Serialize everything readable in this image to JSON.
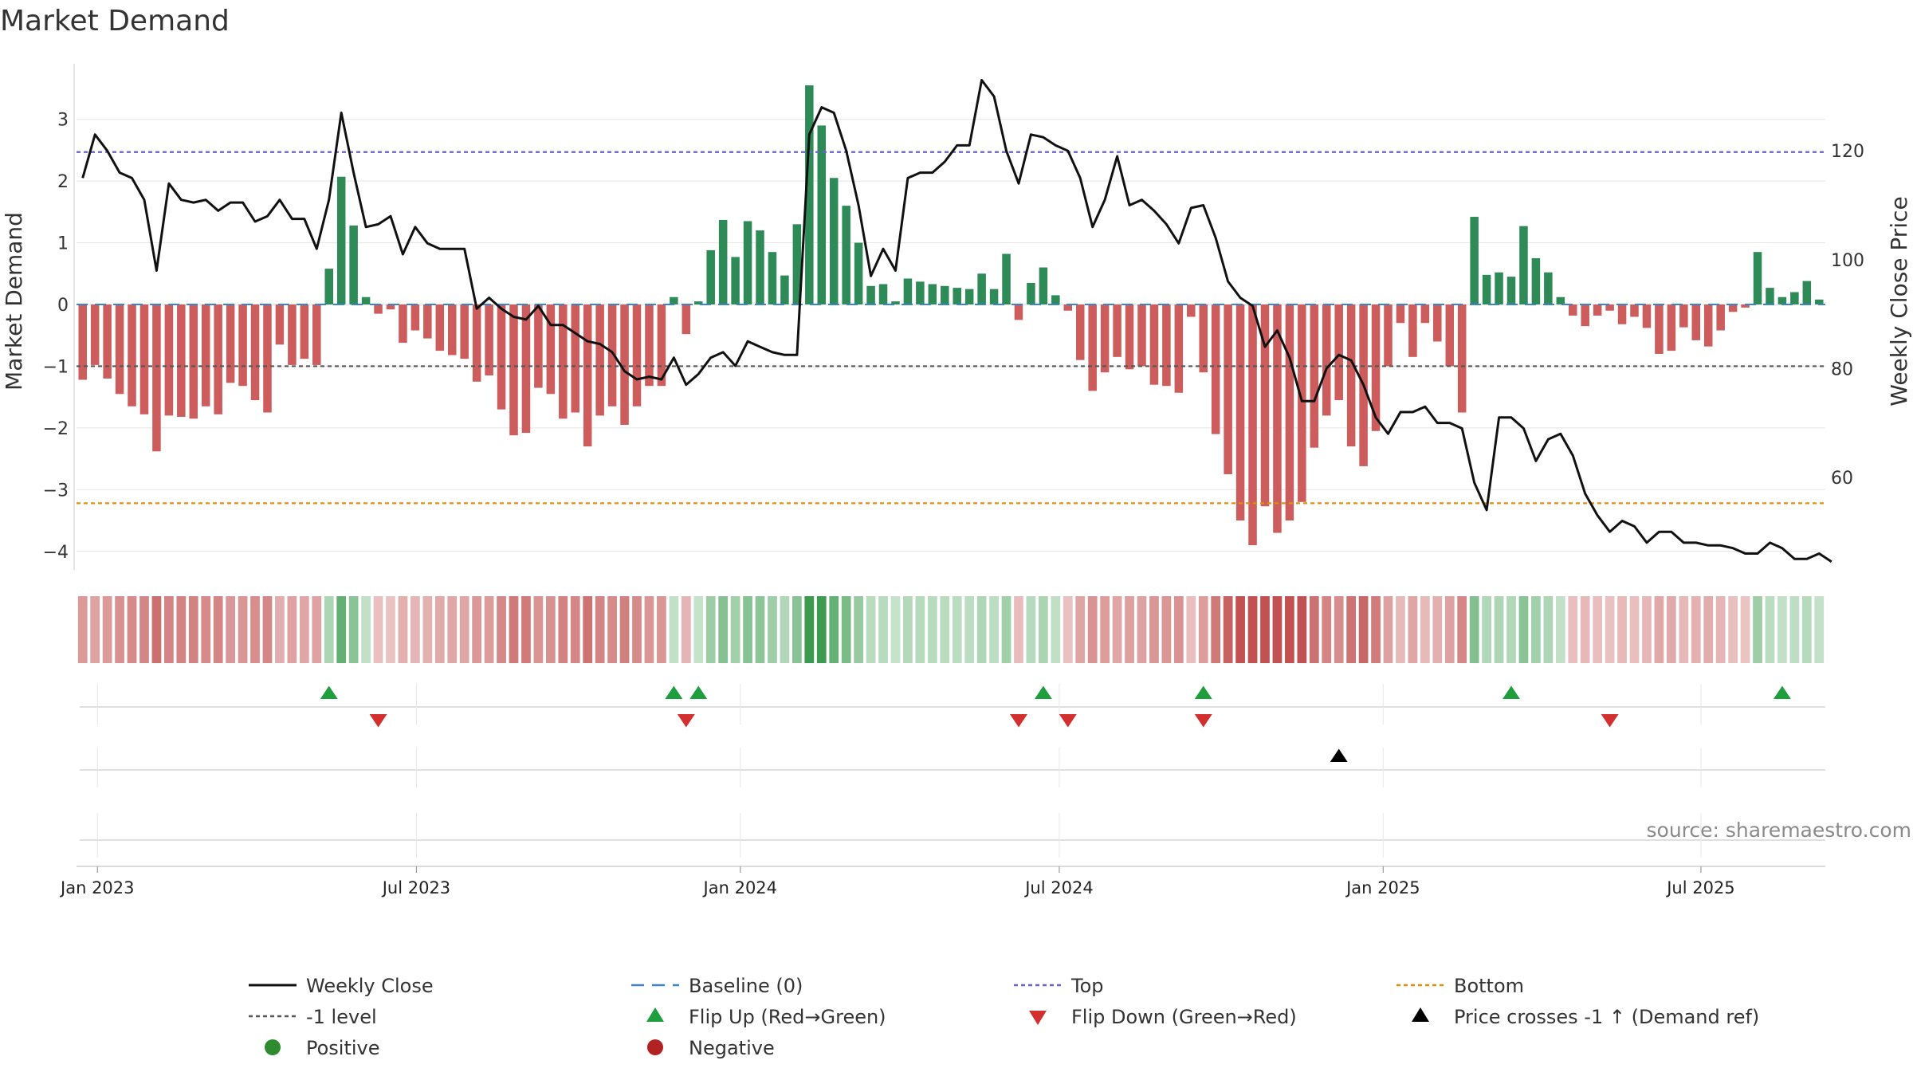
{
  "chart_data": {
    "type": "bar",
    "title": "Market Demand",
    "ylabel": "Market Demand",
    "ylabel_right": "Weekly Close Price",
    "ylim": [
      -4.3,
      3.9
    ],
    "ylim_right": [
      43,
      136
    ],
    "yticks": [
      3,
      2,
      1,
      0,
      -1,
      -2,
      -3,
      -4
    ],
    "ytick_labels": [
      "3",
      "2",
      "1",
      "0",
      "−1",
      "−2",
      "−3",
      "−4"
    ],
    "yticks_right": [
      120,
      100,
      80,
      60
    ],
    "ytick_labels_right": [
      "120",
      "100",
      "80",
      "60"
    ],
    "x_start": "2022-12-25",
    "x_step_days": 7,
    "date_ticks": [
      {
        "week": 1.2,
        "label": "Jan 2023"
      },
      {
        "week": 27.1,
        "label": "Jul 2023"
      },
      {
        "week": 53.4,
        "label": "Jan 2024"
      },
      {
        "week": 79.3,
        "label": "Jul 2024"
      },
      {
        "week": 105.6,
        "label": "Jan 2025"
      },
      {
        "week": 131.4,
        "label": "Jul 2025"
      }
    ],
    "reference_lines": {
      "baseline": 0,
      "top": 2.47,
      "bottom": -3.22,
      "minus_one": -1
    },
    "series": [
      {
        "name": "Market Demand",
        "values": [
          -1.22,
          -0.98,
          -1.2,
          -1.45,
          -1.65,
          -1.78,
          -2.38,
          -1.8,
          -1.82,
          -1.85,
          -1.65,
          -1.78,
          -1.27,
          -1.32,
          -1.55,
          -1.75,
          -0.65,
          -0.98,
          -0.88,
          -0.98,
          0.58,
          2.07,
          1.28,
          0.12,
          -0.15,
          -0.08,
          -0.62,
          -0.42,
          -0.55,
          -0.75,
          -0.82,
          -0.88,
          -1.25,
          -1.15,
          -1.7,
          -2.12,
          -2.08,
          -1.35,
          -1.45,
          -1.85,
          -1.75,
          -2.3,
          -1.8,
          -1.65,
          -1.95,
          -1.65,
          -1.32,
          -1.32,
          0.12,
          -0.48,
          0.05,
          0.88,
          1.37,
          0.77,
          1.35,
          1.2,
          0.85,
          0.47,
          1.3,
          3.55,
          2.9,
          2.05,
          1.6,
          1.0,
          0.3,
          0.33,
          0.05,
          0.42,
          0.37,
          0.33,
          0.3,
          0.27,
          0.25,
          0.5,
          0.25,
          0.82,
          -0.25,
          0.35,
          0.6,
          0.15,
          -0.1,
          -0.9,
          -1.4,
          -1.1,
          -0.85,
          -1.05,
          -1.0,
          -1.3,
          -1.32,
          -1.43,
          -0.2,
          -1.1,
          -2.1,
          -2.75,
          -3.5,
          -3.9,
          -3.27,
          -3.7,
          -3.5,
          -3.2,
          -2.32,
          -1.8,
          -1.55,
          -2.3,
          -2.62,
          -2.05,
          -1.0,
          -0.3,
          -0.85,
          -0.3,
          -0.6,
          -1.0,
          -1.75,
          1.42,
          0.48,
          0.52,
          0.45,
          1.27,
          0.75,
          0.52,
          0.12,
          -0.18,
          -0.35,
          -0.18,
          -0.1,
          -0.32,
          -0.2,
          -0.38,
          -0.8,
          -0.75,
          -0.37,
          -0.58,
          -0.68,
          -0.42,
          -0.12,
          -0.05,
          0.85,
          0.27,
          0.12,
          0.2,
          0.38,
          0.08
        ]
      },
      {
        "name": "Weekly Close",
        "values": [
          115,
          123,
          120,
          116,
          115,
          111,
          98,
          114,
          111,
          110.5,
          111,
          109,
          110.5,
          110.5,
          107,
          108,
          111,
          107.5,
          107.5,
          102,
          111,
          127,
          116,
          106,
          106.5,
          108,
          101,
          106,
          103,
          102,
          102,
          102,
          91,
          93,
          91,
          89.5,
          89,
          91.5,
          88,
          88,
          86.5,
          85,
          84.5,
          83,
          79.5,
          78,
          78.5,
          78,
          82,
          77,
          79,
          82,
          83,
          80.5,
          85,
          84,
          83,
          82.5,
          82.5,
          123,
          128,
          127,
          120,
          110,
          97,
          102,
          98,
          115,
          116,
          116,
          118,
          121,
          121,
          133,
          130,
          120,
          114,
          123,
          122.5,
          121,
          120,
          115,
          106,
          111,
          119,
          110,
          111,
          109,
          106.5,
          103,
          109.5,
          110,
          104,
          96,
          93,
          91.5,
          84,
          87,
          82,
          74,
          74,
          80,
          82.5,
          81.5,
          77,
          71,
          68,
          72,
          72,
          73,
          70,
          70,
          69,
          59,
          54,
          71,
          71,
          69,
          63,
          67,
          68,
          64,
          57,
          53,
          50,
          52,
          51,
          48,
          50,
          50,
          48,
          48,
          47.5,
          47.5,
          47,
          46,
          46,
          48,
          47,
          45,
          45,
          46,
          44.5
        ]
      }
    ],
    "legend": [
      {
        "key": "weekly_close",
        "label": "Weekly Close",
        "color": "#111111"
      },
      {
        "key": "baseline",
        "label": "Baseline (0)",
        "color": "#3a86c8"
      },
      {
        "key": "top",
        "label": "Top",
        "color": "#6b63c9"
      },
      {
        "key": "bottom",
        "label": "Bottom",
        "color": "#e08f10"
      },
      {
        "key": "minus_one",
        "label": "-1 level",
        "color": "#555555"
      },
      {
        "key": "flip_up",
        "label": "Flip Up (Red→Green)",
        "color": "#1f9e3e"
      },
      {
        "key": "flip_down",
        "label": "Flip Down (Green→Red)",
        "color": "#d32f2f"
      },
      {
        "key": "price_cross",
        "label": "Price crosses -1 ↑ (Demand ref)",
        "color": "#000000"
      },
      {
        "key": "positive",
        "label": "Positive",
        "color": "#2e8b2e"
      },
      {
        "key": "negative",
        "label": "Negative",
        "color": "#b22222"
      }
    ],
    "flip_up_weeks": [
      20,
      48,
      50,
      78,
      91,
      116,
      138
    ],
    "flip_down_weeks": [
      24,
      49,
      76,
      80,
      91,
      124
    ],
    "price_cross_weeks": [
      102
    ],
    "source": "source: sharemaestro.com"
  },
  "colors": {
    "pos_bar": "#2e8b57",
    "neg_bar": "#cd5c5c",
    "price_line": "#111111",
    "baseline": "#3a86c8",
    "top": "#6b63c9",
    "bottom": "#e08f10",
    "minus_one": "#555555",
    "grid": "#e8e8e8",
    "strip_axis": "#d6d6d6"
  }
}
